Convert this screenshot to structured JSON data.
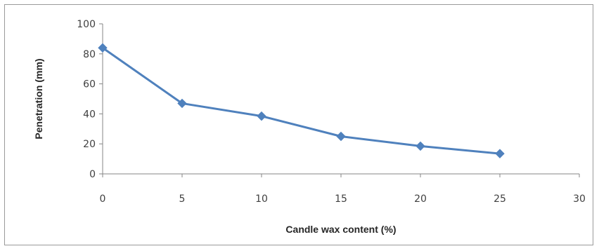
{
  "chart_data": {
    "type": "line",
    "title": "",
    "xlabel": "Candle wax content (%)",
    "ylabel": "Penetration (mm)",
    "xlim": [
      0,
      30
    ],
    "ylim": [
      0,
      100
    ],
    "x_ticks": [
      0,
      5,
      10,
      15,
      20,
      25,
      30
    ],
    "y_ticks": [
      0,
      20,
      40,
      60,
      80,
      100
    ],
    "grid": false,
    "legend": "none",
    "series": [
      {
        "color": "#4f81bd",
        "marker": "diamond",
        "x": [
          0,
          5,
          10,
          15,
          20,
          25
        ],
        "y": [
          84,
          47,
          38.5,
          25,
          18.5,
          13.5
        ]
      }
    ]
  }
}
